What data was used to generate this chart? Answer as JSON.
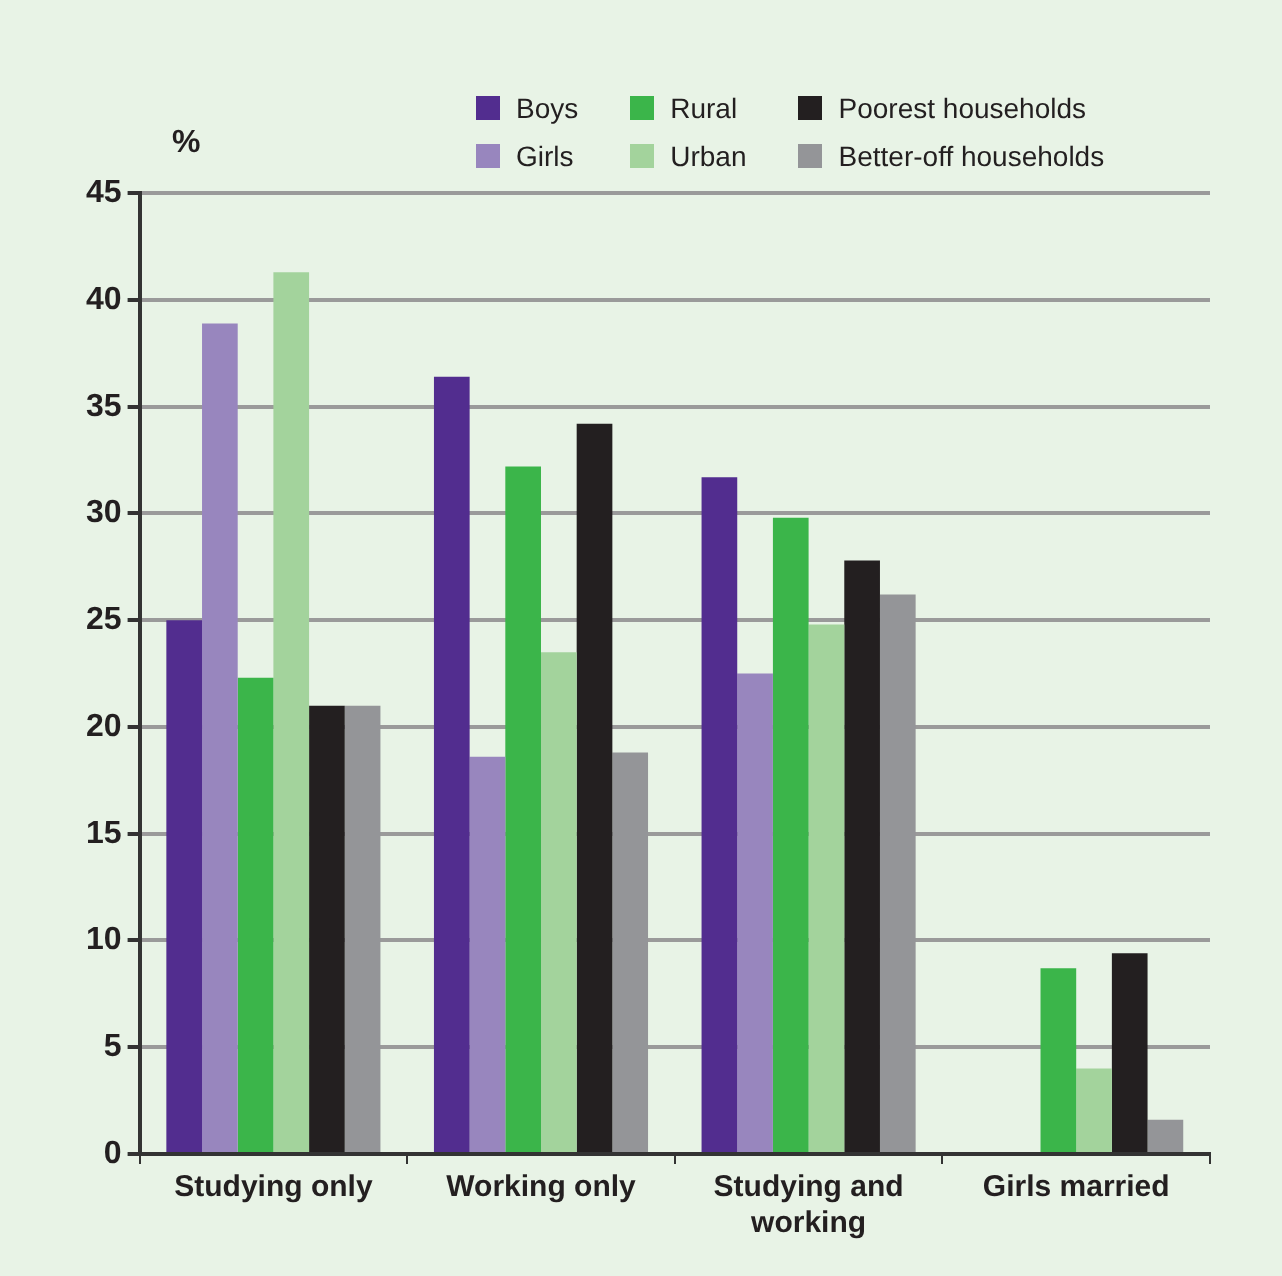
{
  "chart_data": {
    "type": "bar",
    "ylabel": "%",
    "categories": [
      "Studying only",
      "Working only",
      "Studying and working",
      "Girls married"
    ],
    "series": [
      {
        "name": "Boys",
        "color": "#522d8f",
        "values": [
          25,
          36.4,
          31.7,
          null
        ]
      },
      {
        "name": "Girls",
        "color": "#9886be",
        "values": [
          38.9,
          18.6,
          22.5,
          null
        ]
      },
      {
        "name": "Rural",
        "color": "#3bb54a",
        "values": [
          22.3,
          32.2,
          29.8,
          8.7
        ]
      },
      {
        "name": "Urban",
        "color": "#a3d39c",
        "values": [
          41.3,
          23.5,
          24.8,
          4.0
        ]
      },
      {
        "name": "Poorest households",
        "color": "#231f20",
        "values": [
          21,
          34.2,
          27.8,
          9.4
        ]
      },
      {
        "name": "Better-off households",
        "color": "#949598",
        "values": [
          21,
          18.8,
          26.2,
          1.6
        ]
      }
    ],
    "ylim": [
      0,
      45
    ],
    "yticks": [
      0,
      5,
      10,
      15,
      20,
      25,
      30,
      35,
      40,
      45
    ],
    "grid": "y",
    "legend": "top right"
  }
}
